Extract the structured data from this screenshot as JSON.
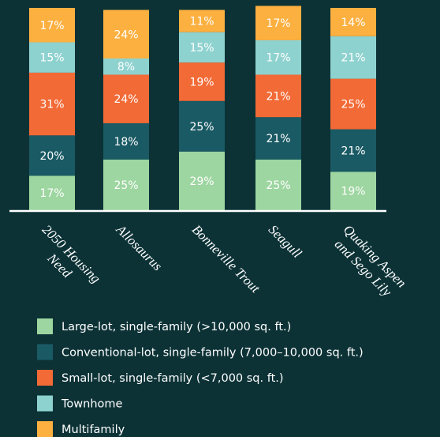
{
  "chart_data": {
    "type": "stacked_bar",
    "categories": [
      "2050 Housing\nNeed",
      "Allosaurus",
      "Bonneville Trout",
      "Seagull",
      "Quaking Aspen\nand Sego Lily"
    ],
    "series": [
      {
        "name": "Large-lot, single-family (>10,000 sq. ft.)",
        "color": "#9dd6a0",
        "values": [
          17,
          25,
          29,
          25,
          19
        ],
        "value_labels": [
          "17%",
          "25%",
          "29%",
          "25%",
          "19%"
        ]
      },
      {
        "name": "Conventional-lot, single-family (7,000–10,000 sq. ft.)",
        "color": "#1a5a64",
        "values": [
          20,
          18,
          25,
          21,
          21
        ],
        "value_labels": [
          "20%",
          "18%",
          "25%",
          "21%",
          "21%"
        ]
      },
      {
        "name": "Small-lot, single-family (<7,000 sq. ft.)",
        "color": "#f26a36",
        "values": [
          31,
          24,
          19,
          21,
          25
        ],
        "value_labels": [
          "31%",
          "24%",
          "19%",
          "21%",
          "25%"
        ]
      },
      {
        "name": "Townhome",
        "color": "#8ed2cf",
        "values": [
          15,
          8,
          15,
          17,
          21
        ],
        "value_labels": [
          "15%",
          "8%",
          "15%",
          "17%",
          "21%"
        ]
      },
      {
        "name": "Multifamily",
        "color": "#fbb040",
        "values": [
          17,
          24,
          11,
          17,
          14
        ],
        "value_labels": [
          "17%",
          "24%",
          "11%",
          "17%",
          "14%"
        ]
      }
    ]
  }
}
